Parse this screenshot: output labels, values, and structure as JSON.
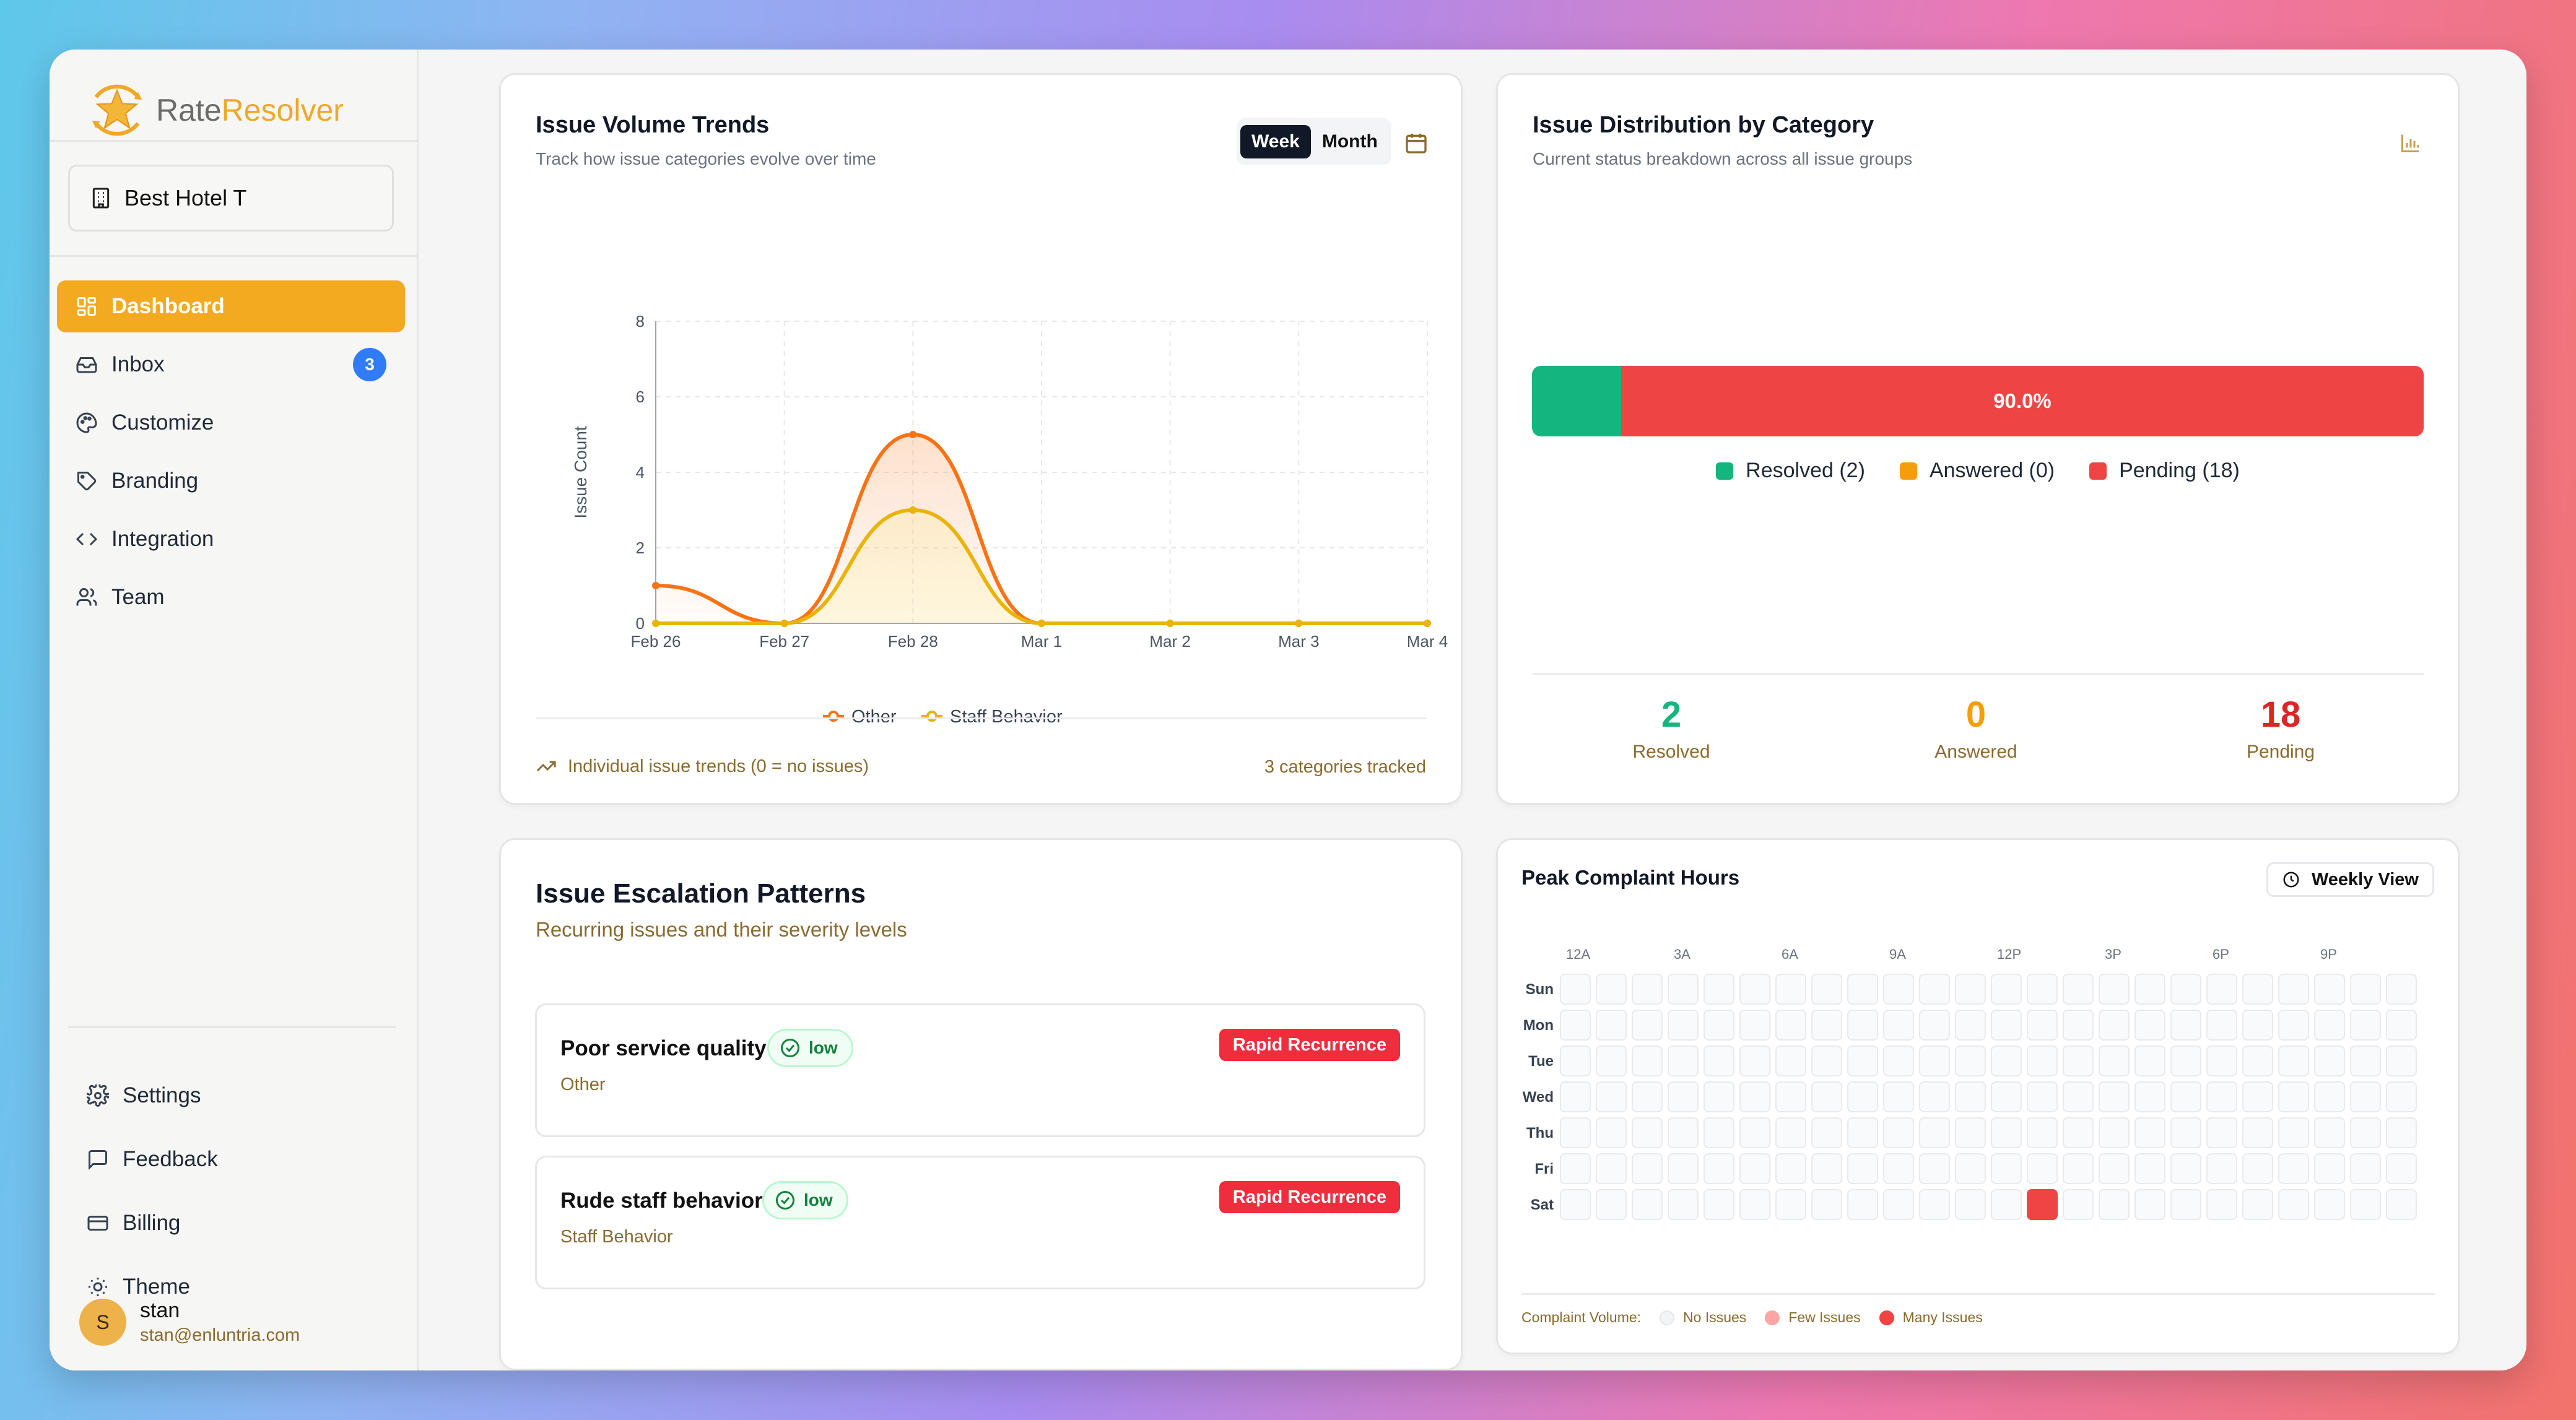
{
  "app": {
    "name_part1": "Rate",
    "name_part2": "Resolver"
  },
  "property": {
    "name": "Best Hotel T"
  },
  "nav": {
    "items": [
      {
        "label": "Dashboard",
        "active": true
      },
      {
        "label": "Inbox",
        "badge": "3"
      },
      {
        "label": "Customize"
      },
      {
        "label": "Branding"
      },
      {
        "label": "Integration"
      },
      {
        "label": "Team"
      }
    ],
    "bottom": [
      {
        "label": "Settings"
      },
      {
        "label": "Feedback"
      },
      {
        "label": "Billing"
      },
      {
        "label": "Theme"
      }
    ]
  },
  "user": {
    "initial": "S",
    "name": "stan",
    "email": "stan@enluntria.com"
  },
  "trends": {
    "title": "Issue Volume Trends",
    "subtitle": "Track how issue categories evolve over time",
    "toggle_week": "Week",
    "toggle_month": "Month",
    "footer_left": "Individual issue trends (0 = no issues)",
    "footer_right": "3 categories tracked"
  },
  "chart_data": {
    "type": "line",
    "title": "Issue Volume Trends",
    "ylabel": "Issue Count",
    "xlabel": "",
    "categories": [
      "Feb 26",
      "Feb 27",
      "Feb 28",
      "Mar 1",
      "Mar 2",
      "Mar 3",
      "Mar 4"
    ],
    "ylim": [
      0,
      8
    ],
    "yticks": [
      0,
      2,
      4,
      6,
      8
    ],
    "series": [
      {
        "name": "Other",
        "color": "#f97316",
        "values": [
          1,
          0,
          5,
          0,
          0,
          0,
          0
        ]
      },
      {
        "name": "Staff Behavior",
        "color": "#eab308",
        "values": [
          0,
          0,
          3,
          0,
          0,
          0,
          0
        ]
      }
    ],
    "legend": "bottom",
    "grid": true
  },
  "distribution": {
    "title": "Issue Distribution by Category",
    "subtitle": "Current status breakdown across all issue groups",
    "bar_label": "90.0%",
    "resolved_fraction": 0.1,
    "legend": [
      {
        "label": "Resolved (2)",
        "color": "#14b57e"
      },
      {
        "label": "Answered (0)",
        "color": "#f59e0b"
      },
      {
        "label": "Pending (18)",
        "color": "#ef4444"
      }
    ],
    "stats": [
      {
        "value": "2",
        "label": "Resolved",
        "color": "#14b57e"
      },
      {
        "value": "0",
        "label": "Answered",
        "color": "#f59e0b"
      },
      {
        "value": "18",
        "label": "Pending",
        "color": "#dc2626"
      }
    ]
  },
  "escalation": {
    "title": "Issue Escalation Patterns",
    "subtitle": "Recurring issues and their severity levels",
    "items": [
      {
        "title": "Poor service quality",
        "severity": "low",
        "category": "Other",
        "tag": "Rapid Recurrence"
      },
      {
        "title": "Rude staff behavior",
        "severity": "low",
        "category": "Staff Behavior",
        "tag": "Rapid Recurrence"
      }
    ]
  },
  "peak": {
    "title": "Peak Complaint Hours",
    "view_button": "Weekly View",
    "hour_labels": [
      "12A",
      "3A",
      "6A",
      "9A",
      "12P",
      "3P",
      "6P",
      "9P"
    ],
    "days": [
      "Sun",
      "Mon",
      "Tue",
      "Wed",
      "Thu",
      "Fri",
      "Sat"
    ],
    "hot_cells": [
      {
        "day": "Sat",
        "hour": 13
      }
    ],
    "legend_title": "Complaint Volume:",
    "legend": [
      {
        "label": "No Issues",
        "color": "#f3f4f6"
      },
      {
        "label": "Few Issues",
        "color": "#fca5a5"
      },
      {
        "label": "Many Issues",
        "color": "#ef4444"
      }
    ]
  }
}
